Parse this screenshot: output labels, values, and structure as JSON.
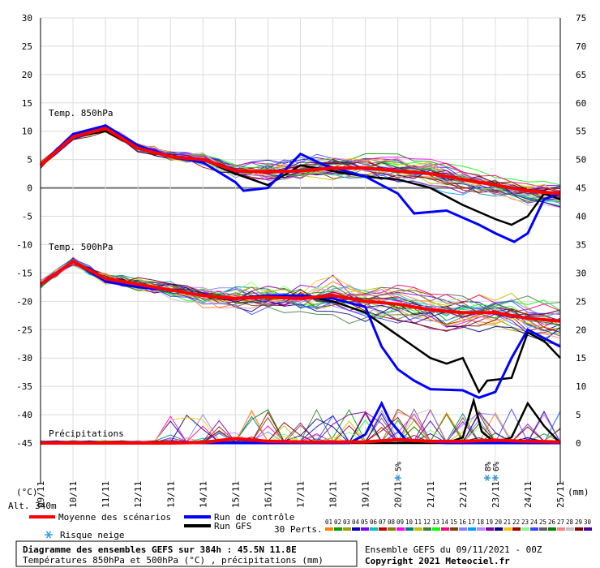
{
  "chart_data": {
    "type": "line",
    "panels": [
      {
        "label": "Temp. 850hPa",
        "unit": "°C"
      },
      {
        "label": "Temp. 500hPa",
        "unit": "°C"
      },
      {
        "label": "Précipitations",
        "unit": "mm"
      }
    ],
    "left_axis": {
      "unit": "(°C)",
      "ticks": [
        30,
        25,
        20,
        15,
        10,
        5,
        0,
        -5,
        -10,
        -15,
        -20,
        -25,
        -30,
        -35,
        -40,
        -45
      ],
      "range": [
        -45,
        30
      ]
    },
    "right_axis": {
      "unit": "(mm)",
      "ticks": [
        75,
        70,
        65,
        60,
        55,
        50,
        45,
        40,
        35,
        30,
        25,
        20,
        15,
        10,
        5,
        0
      ],
      "range": [
        0,
        75
      ]
    },
    "x_dates": [
      "09/11",
      "10/11",
      "11/11",
      "12/11",
      "13/11",
      "14/11",
      "15/11",
      "16/11",
      "17/11",
      "18/11",
      "19/11",
      "20/11",
      "21/11",
      "22/11",
      "23/11",
      "24/11",
      "25/11"
    ],
    "x_range_hours": [
      0,
      384
    ],
    "snow_risk": [
      {
        "x_hour": 264,
        "label": "5%"
      },
      {
        "x_hour": 330,
        "label": "8%"
      },
      {
        "x_hour": 336,
        "label": "6%"
      }
    ],
    "series": [
      {
        "name": "Moyenne des scénarios",
        "color": "#ff0000",
        "t850": [
          [
            0,
            4
          ],
          [
            24,
            9
          ],
          [
            48,
            10.5
          ],
          [
            72,
            7
          ],
          [
            96,
            5.5
          ],
          [
            120,
            5
          ],
          [
            144,
            3
          ],
          [
            168,
            2.8
          ],
          [
            192,
            3
          ],
          [
            216,
            3.5
          ],
          [
            240,
            3.5
          ],
          [
            264,
            3
          ],
          [
            288,
            2.5
          ],
          [
            312,
            1.5
          ],
          [
            336,
            0.5
          ],
          [
            360,
            -0.5
          ],
          [
            384,
            -1
          ]
        ],
        "t500": [
          [
            0,
            -17
          ],
          [
            24,
            -13
          ],
          [
            48,
            -16
          ],
          [
            72,
            -17
          ],
          [
            96,
            -18
          ],
          [
            120,
            -19
          ],
          [
            144,
            -19.5
          ],
          [
            168,
            -19.3
          ],
          [
            192,
            -19.5
          ],
          [
            216,
            -19
          ],
          [
            240,
            -20
          ],
          [
            264,
            -20.5
          ],
          [
            288,
            -21.5
          ],
          [
            312,
            -22
          ],
          [
            336,
            -22
          ],
          [
            360,
            -23
          ],
          [
            384,
            -23.5
          ]
        ],
        "precip": [
          [
            0,
            0
          ],
          [
            96,
            0
          ],
          [
            120,
            0.1
          ],
          [
            144,
            0.8
          ],
          [
            168,
            0.3
          ],
          [
            192,
            0.2
          ],
          [
            216,
            0.2
          ],
          [
            240,
            0.2
          ],
          [
            264,
            0.6
          ],
          [
            288,
            0.3
          ],
          [
            312,
            0.3
          ],
          [
            336,
            0.5
          ],
          [
            360,
            0.3
          ],
          [
            384,
            0.2
          ]
        ]
      },
      {
        "name": "Run de contrôle",
        "color": "#0000ff",
        "t850": [
          [
            0,
            4
          ],
          [
            24,
            9.5
          ],
          [
            48,
            11
          ],
          [
            72,
            7.5
          ],
          [
            96,
            5.5
          ],
          [
            120,
            4.5
          ],
          [
            144,
            1
          ],
          [
            150,
            -0.5
          ],
          [
            168,
            0
          ],
          [
            192,
            6
          ],
          [
            210,
            4
          ],
          [
            240,
            2
          ],
          [
            264,
            -1
          ],
          [
            276,
            -4.5
          ],
          [
            300,
            -4
          ],
          [
            324,
            -6.5
          ],
          [
            336,
            -8
          ],
          [
            350,
            -9.5
          ],
          [
            360,
            -8
          ],
          [
            372,
            -2
          ],
          [
            384,
            -1
          ]
        ],
        "t500": [
          [
            0,
            -17
          ],
          [
            24,
            -13
          ],
          [
            48,
            -16.5
          ],
          [
            72,
            -17.5
          ],
          [
            96,
            -18
          ],
          [
            120,
            -19
          ],
          [
            144,
            -19.5
          ],
          [
            168,
            -19
          ],
          [
            192,
            -19
          ],
          [
            216,
            -19.5
          ],
          [
            240,
            -21
          ],
          [
            252,
            -28
          ],
          [
            264,
            -32
          ],
          [
            276,
            -34
          ],
          [
            288,
            -35.5
          ],
          [
            312,
            -35.7
          ],
          [
            324,
            -37
          ],
          [
            336,
            -36
          ],
          [
            348,
            -30
          ],
          [
            360,
            -25
          ],
          [
            384,
            -28
          ]
        ],
        "precip": [
          [
            0,
            0
          ],
          [
            228,
            0
          ],
          [
            240,
            1.5
          ],
          [
            252,
            7
          ],
          [
            258,
            4
          ],
          [
            270,
            0.5
          ],
          [
            300,
            0
          ],
          [
            384,
            0
          ]
        ]
      },
      {
        "name": "Run GFS",
        "color": "#000000",
        "t850": [
          [
            0,
            4
          ],
          [
            24,
            9
          ],
          [
            48,
            10
          ],
          [
            72,
            7
          ],
          [
            96,
            5.5
          ],
          [
            120,
            5
          ],
          [
            144,
            2.5
          ],
          [
            168,
            0.5
          ],
          [
            192,
            4
          ],
          [
            216,
            3
          ],
          [
            240,
            2
          ],
          [
            264,
            1.5
          ],
          [
            288,
            0
          ],
          [
            312,
            -3
          ],
          [
            336,
            -5.5
          ],
          [
            348,
            -6.5
          ],
          [
            360,
            -5
          ],
          [
            372,
            -1
          ],
          [
            384,
            -2
          ]
        ],
        "t500": [
          [
            0,
            -17
          ],
          [
            24,
            -13
          ],
          [
            48,
            -16
          ],
          [
            72,
            -17
          ],
          [
            96,
            -18
          ],
          [
            120,
            -19
          ],
          [
            144,
            -19.5
          ],
          [
            168,
            -19
          ],
          [
            192,
            -19
          ],
          [
            216,
            -20
          ],
          [
            240,
            -22
          ],
          [
            264,
            -26
          ],
          [
            288,
            -30
          ],
          [
            300,
            -31
          ],
          [
            312,
            -30
          ],
          [
            324,
            -36
          ],
          [
            330,
            -34
          ],
          [
            348,
            -33.5
          ],
          [
            360,
            -25.5
          ],
          [
            372,
            -27
          ],
          [
            384,
            -30
          ]
        ],
        "precip": [
          [
            0,
            0
          ],
          [
            300,
            0
          ],
          [
            312,
            1
          ],
          [
            320,
            7.5
          ],
          [
            326,
            2
          ],
          [
            336,
            0
          ],
          [
            348,
            1
          ],
          [
            360,
            7
          ],
          [
            372,
            3
          ],
          [
            384,
            0
          ]
        ]
      }
    ]
  },
  "legend": {
    "mean_label": "Moyenne des scénarios",
    "control_label": "Run de contrôle",
    "gfs_label": "Run GFS",
    "snow_label": "Risque neige",
    "perts_label": "30 Perts.",
    "member_numbers": [
      "01",
      "02",
      "03",
      "04",
      "05",
      "06",
      "07",
      "08",
      "09",
      "10",
      "11",
      "12",
      "13",
      "14",
      "15",
      "16",
      "17",
      "18",
      "19",
      "20",
      "21",
      "22",
      "23",
      "24",
      "25",
      "26",
      "27",
      "28",
      "29",
      "30"
    ],
    "member_colors": [
      "#ff8000",
      "#00a000",
      "#a0a000",
      "#0000c0",
      "#8000ff",
      "#00c0c0",
      "#c00000",
      "#808000",
      "#ff00ff",
      "#008080",
      "#c0c000",
      "#408040",
      "#00ff00",
      "#ff0080",
      "#804000",
      "#8080ff",
      "#00a0ff",
      "#c080ff",
      "#8000a0",
      "#000080",
      "#ffc000",
      "#a00000",
      "#80ff80",
      "#4040ff",
      "#606060",
      "#008000",
      "#ff8080",
      "#c0c0c0",
      "#800000",
      "#4000a0"
    ]
  },
  "header": {
    "alt_label": "Alt. 340m",
    "title": "Diagramme des ensembles GEFS sur 384h : 45.5N 11.8E",
    "subtitle": "Températures 850hPa et 500hPa (°C) , précipitations (mm)",
    "run_info": "Ensemble GEFS du 09/11/2021 - 00Z",
    "copyright": "Copyright 2021 Meteociel.fr"
  }
}
